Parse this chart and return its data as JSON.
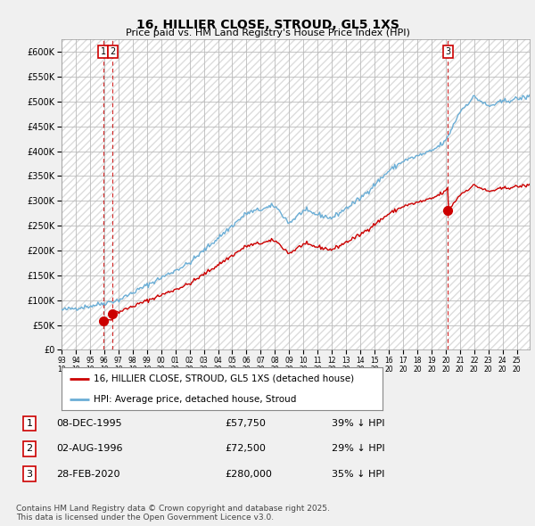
{
  "title": "16, HILLIER CLOSE, STROUD, GL5 1XS",
  "subtitle": "Price paid vs. HM Land Registry's House Price Index (HPI)",
  "sale_dates_float": [
    1995.937,
    1996.5836,
    2020.1616
  ],
  "sale_prices": [
    57750,
    72500,
    280000
  ],
  "sale_labels": [
    "1",
    "2",
    "3"
  ],
  "legend_line1": "16, HILLIER CLOSE, STROUD, GL5 1XS (detached house)",
  "legend_line2": "HPI: Average price, detached house, Stroud",
  "table_rows": [
    {
      "num": "1",
      "date": "08-DEC-1995",
      "price": "£57,750",
      "hpi": "39% ↓ HPI"
    },
    {
      "num": "2",
      "date": "02-AUG-1996",
      "price": "£72,500",
      "hpi": "29% ↓ HPI"
    },
    {
      "num": "3",
      "date": "28-FEB-2020",
      "price": "£280,000",
      "hpi": "35% ↓ HPI"
    }
  ],
  "footnote": "Contains HM Land Registry data © Crown copyright and database right 2025.\nThis data is licensed under the Open Government Licence v3.0.",
  "hpi_color": "#6baed6",
  "price_color": "#cc0000",
  "ylim": [
    0,
    625000
  ],
  "ytick_vals": [
    0,
    50000,
    100000,
    150000,
    200000,
    250000,
    300000,
    350000,
    400000,
    450000,
    500000,
    550000,
    600000
  ],
  "ytick_labels": [
    "£0",
    "£50K",
    "£100K",
    "£150K",
    "£200K",
    "£250K",
    "£300K",
    "£350K",
    "£400K",
    "£450K",
    "£500K",
    "£550K",
    "£600K"
  ],
  "xmin": 1993,
  "xmax": 2025.9,
  "xtick_years": [
    1993,
    1994,
    1995,
    1996,
    1997,
    1998,
    1999,
    2000,
    2001,
    2002,
    2003,
    2004,
    2005,
    2006,
    2007,
    2008,
    2009,
    2010,
    2011,
    2012,
    2013,
    2014,
    2015,
    2016,
    2017,
    2018,
    2019,
    2020,
    2021,
    2022,
    2023,
    2024,
    2025
  ],
  "bg_color": "#f0f0f0",
  "plot_bg_color": "#ffffff",
  "grid_color": "#bbbbbb",
  "hatch_color": "#dddddd",
  "hpi_anchor_years": [
    1993,
    1995,
    1997,
    2000,
    2002,
    2004,
    2006,
    2008,
    2009,
    2010,
    2012,
    2014,
    2016,
    2017,
    2018,
    2019,
    2020,
    2021,
    2022,
    2023,
    2024,
    2025.9
  ],
  "hpi_anchor_prices": [
    80000,
    88000,
    100000,
    145000,
    175000,
    225000,
    275000,
    290000,
    255000,
    280000,
    265000,
    305000,
    360000,
    380000,
    390000,
    400000,
    420000,
    480000,
    510000,
    490000,
    500000,
    510000
  ],
  "noise_seed": 42
}
